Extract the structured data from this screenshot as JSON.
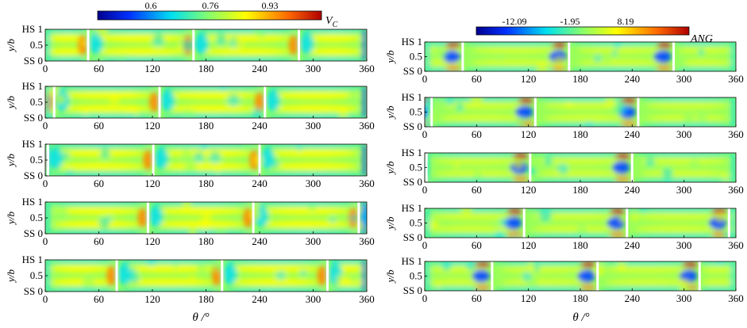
{
  "chart_data": [
    {
      "type": "heatmap",
      "panel": "left",
      "colorbar": {
        "variable": "V",
        "variable_subscript": "C",
        "ticks": [
          "0.6",
          "0.76",
          "0.93"
        ]
      },
      "xlabel": "θ /°",
      "ylabel": "y/b",
      "xticks": [
        "0",
        "60",
        "120",
        "180",
        "240",
        "300",
        "360"
      ],
      "yticks": [
        "SS 0",
        "0.5",
        "HS 1"
      ],
      "xlim": [
        0,
        360
      ],
      "ylim": [
        0,
        1
      ],
      "rows": [
        {
          "blade_lines": [
            48,
            166,
            284
          ]
        },
        {
          "blade_lines": [
            10,
            128,
            246
          ]
        },
        {
          "blade_lines": [
            3,
            121,
            240
          ]
        },
        {
          "blade_lines": [
            115,
            233,
            351
          ]
        },
        {
          "blade_lines": [
            80,
            198,
            316
          ]
        }
      ]
    },
    {
      "type": "heatmap",
      "panel": "right",
      "colorbar": {
        "variable": "ANG",
        "ticks": [
          "-12.09",
          "-1.95",
          "8.19"
        ]
      },
      "xlabel": "θ /°",
      "ylabel": "y/b",
      "xticks": [
        "0",
        "60",
        "120",
        "180",
        "240",
        "300",
        "360"
      ],
      "yticks": [
        "SS 0",
        "0.5",
        "HS 1"
      ],
      "xlim": [
        0,
        360
      ],
      "ylim": [
        0,
        1
      ],
      "rows": [
        {
          "blade_lines": [
            44,
            167,
            288
          ]
        },
        {
          "blade_lines": [
            8,
            128,
            247
          ]
        },
        {
          "blade_lines": [
            2,
            122,
            240
          ]
        },
        {
          "blade_lines": [
            115,
            234,
            352
          ]
        },
        {
          "blade_lines": [
            78,
            200,
            318
          ]
        }
      ]
    }
  ],
  "colormap": [
    "#00008f",
    "#0050ff",
    "#00e0f0",
    "#8aff6a",
    "#ffff00",
    "#ff8a00",
    "#c80000"
  ]
}
